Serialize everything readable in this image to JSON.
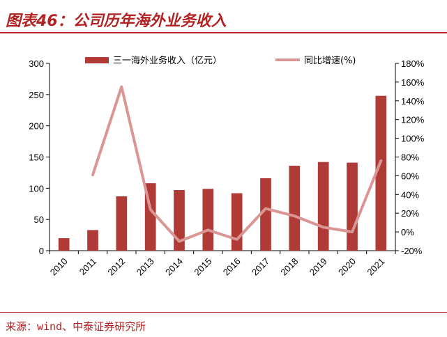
{
  "figure": {
    "title": "图表46：公司历年海外业务收入",
    "source": "来源：wind、中泰证券研究所"
  },
  "colors": {
    "bar": "#b03a35",
    "line": "#d99694",
    "title": "#b22222"
  },
  "chart_data": {
    "type": "bar",
    "categories": [
      "2010",
      "2011",
      "2012",
      "2013",
      "2014",
      "2015",
      "2016",
      "2017",
      "2018",
      "2019",
      "2020",
      "2021"
    ],
    "series": [
      {
        "name": "三一海外业务收入（亿元）",
        "type": "bar",
        "axis": "left",
        "values": [
          20,
          33,
          87,
          108,
          97,
          99,
          92,
          116,
          136,
          142,
          141,
          248
        ]
      },
      {
        "name": "同比增速(%)",
        "type": "line",
        "axis": "right",
        "values": [
          null,
          61,
          155,
          24,
          -10,
          2,
          -8,
          25,
          17,
          5,
          0,
          76
        ]
      }
    ],
    "y_left": {
      "ylim": [
        0,
        300
      ],
      "ticks": [
        "0",
        "50",
        "100",
        "150",
        "200",
        "250",
        "300"
      ]
    },
    "y_right": {
      "ylim": [
        -20,
        180
      ],
      "ticks": [
        "-20%",
        "0%",
        "20%",
        "40%",
        "60%",
        "80%",
        "100%",
        "120%",
        "140%",
        "160%",
        "180%"
      ]
    },
    "grid": false,
    "legend": "top"
  }
}
